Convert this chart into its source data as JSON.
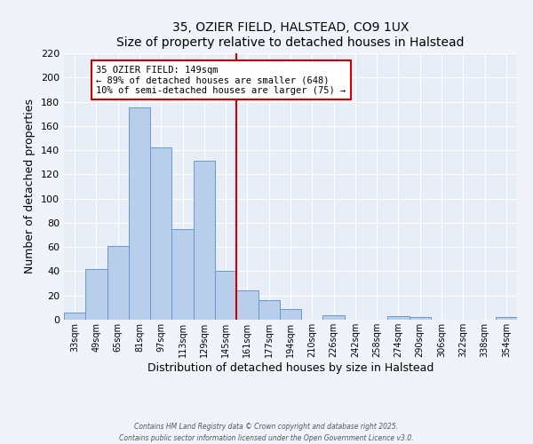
{
  "title": "35, OZIER FIELD, HALSTEAD, CO9 1UX",
  "subtitle": "Size of property relative to detached houses in Halstead",
  "xlabel": "Distribution of detached houses by size in Halstead",
  "ylabel": "Number of detached properties",
  "bin_labels": [
    "33sqm",
    "49sqm",
    "65sqm",
    "81sqm",
    "97sqm",
    "113sqm",
    "129sqm",
    "145sqm",
    "161sqm",
    "177sqm",
    "194sqm",
    "210sqm",
    "226sqm",
    "242sqm",
    "258sqm",
    "274sqm",
    "290sqm",
    "306sqm",
    "322sqm",
    "338sqm",
    "354sqm"
  ],
  "bar_heights": [
    6,
    42,
    61,
    175,
    142,
    75,
    131,
    40,
    24,
    16,
    9,
    0,
    4,
    0,
    0,
    3,
    2,
    0,
    0,
    0,
    2
  ],
  "bar_color": "#b8ceea",
  "bar_edge_color": "#6699cc",
  "vline_x": 7.5,
  "vline_color": "#cc0000",
  "annotation_title": "35 OZIER FIELD: 149sqm",
  "annotation_line1": "← 89% of detached houses are smaller (648)",
  "annotation_line2": "10% of semi-detached houses are larger (75) →",
  "annotation_box_color": "#ffffff",
  "annotation_box_edge": "#cc0000",
  "ylim": [
    0,
    220
  ],
  "yticks": [
    0,
    20,
    40,
    60,
    80,
    100,
    120,
    140,
    160,
    180,
    200,
    220
  ],
  "footer1": "Contains HM Land Registry data © Crown copyright and database right 2025.",
  "footer2": "Contains public sector information licensed under the Open Government Licence v3.0.",
  "bg_color": "#f0f4fa",
  "plot_bg_color": "#e8eef8"
}
